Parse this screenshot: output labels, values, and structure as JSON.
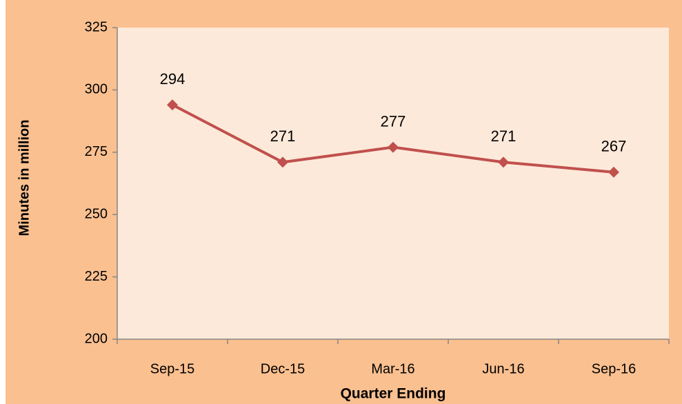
{
  "chart_data": {
    "type": "line",
    "x_label": "Quarter Ending",
    "y_label": "Minutes in million",
    "categories": [
      "Sep-15",
      "Dec-15",
      "Mar-16",
      "Jun-16",
      "Sep-16"
    ],
    "series": [
      {
        "name": "Minutes",
        "color": "#c0504d",
        "values": [
          294,
          271,
          277,
          271,
          267
        ]
      }
    ],
    "ylim": [
      200,
      325
    ],
    "yticks": [
      200,
      225,
      250,
      275,
      300,
      325
    ],
    "grid": false
  }
}
